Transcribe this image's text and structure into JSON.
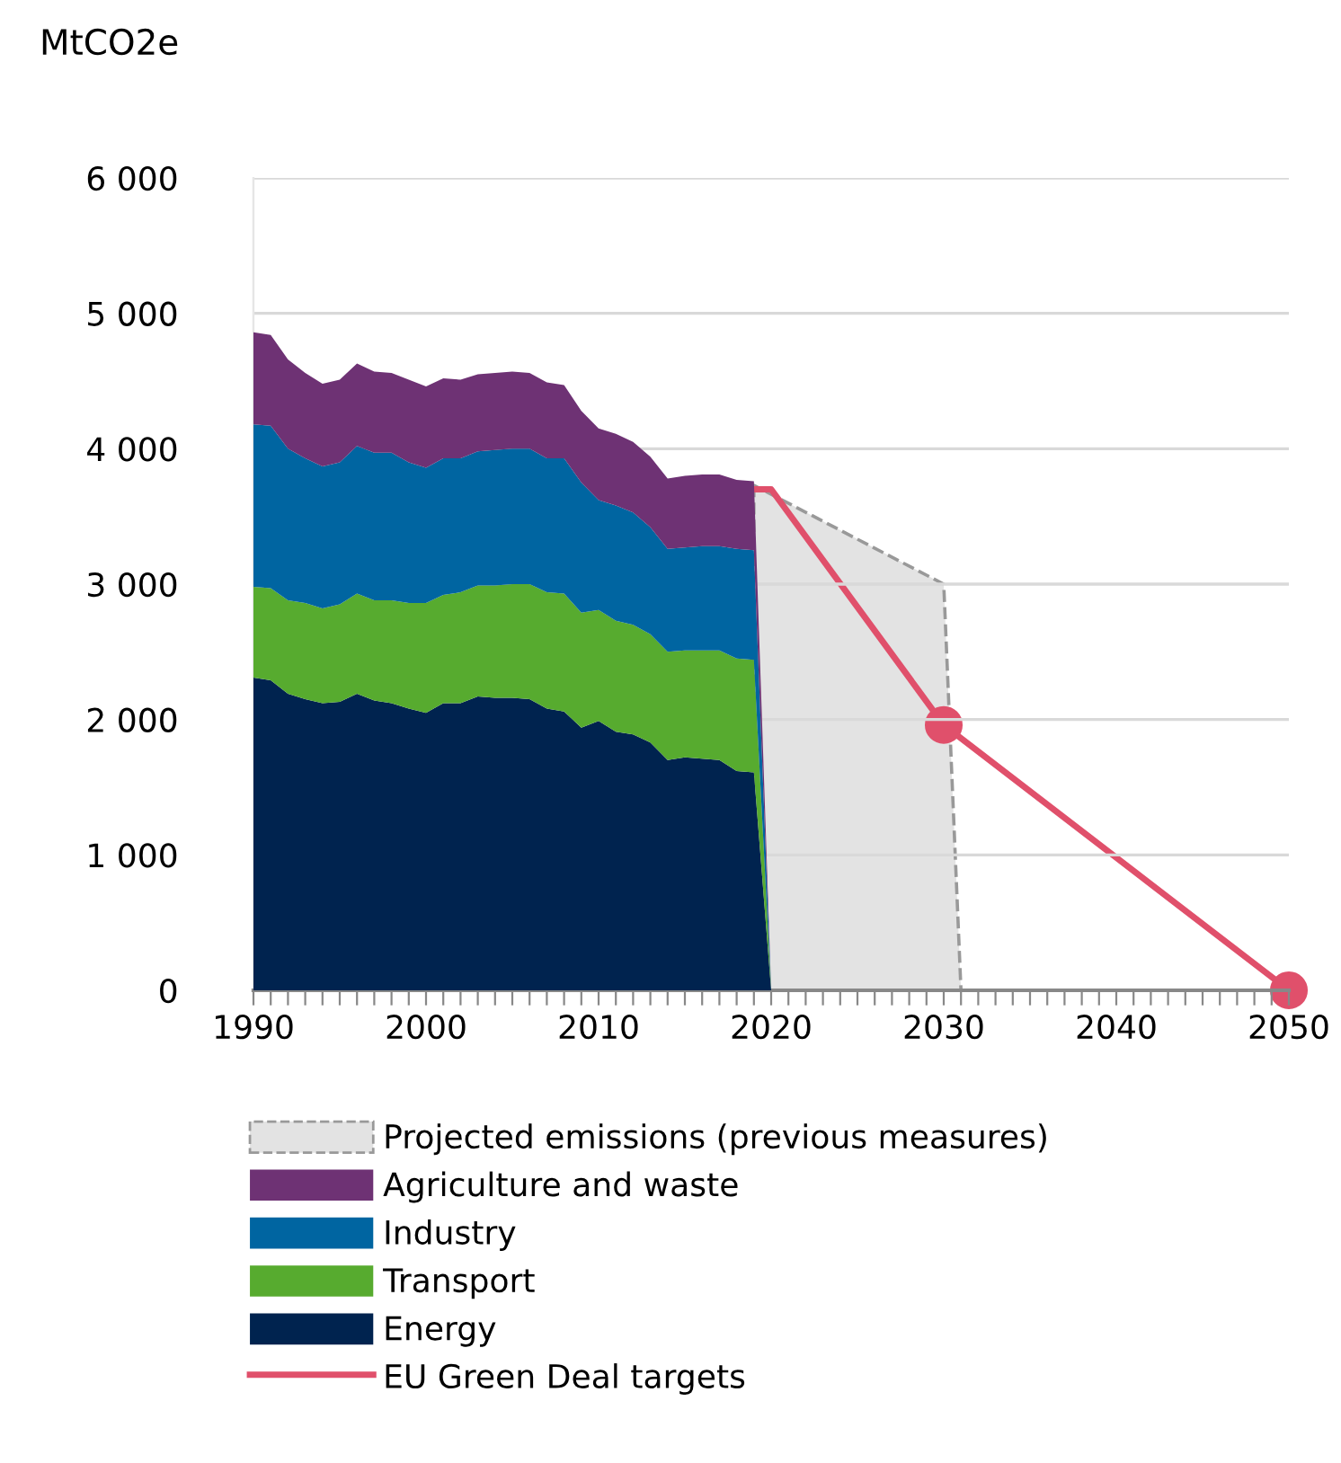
{
  "chart_data": [
    {
      "type": "area",
      "stacked": true,
      "ylabel": "MtCO2e",
      "x": [
        1990,
        1991,
        1992,
        1993,
        1994,
        1995,
        1996,
        1997,
        1998,
        1999,
        2000,
        2001,
        2002,
        2003,
        2004,
        2005,
        2006,
        2007,
        2008,
        2009,
        2010,
        2011,
        2012,
        2013,
        2014,
        2015,
        2016,
        2017,
        2018,
        2019,
        2020
      ],
      "series": [
        {
          "name": "Energy",
          "color": "#00234f",
          "values": [
            2310,
            2290,
            2190,
            2150,
            2120,
            2130,
            2190,
            2140,
            2120,
            2080,
            2050,
            2120,
            2120,
            2170,
            2160,
            2160,
            2150,
            2080,
            2060,
            1940,
            1990,
            1910,
            1890,
            1830,
            1700,
            1720,
            1710,
            1700,
            1620,
            1610,
            0
          ]
        },
        {
          "name": "Transport",
          "color": "#57ab2f",
          "values": [
            670,
            680,
            690,
            710,
            700,
            720,
            740,
            740,
            760,
            780,
            810,
            800,
            820,
            820,
            830,
            840,
            850,
            860,
            870,
            850,
            820,
            820,
            810,
            800,
            800,
            790,
            800,
            810,
            830,
            830,
            0
          ]
        },
        {
          "name": "Industry",
          "color": "#0065a1",
          "values": [
            1200,
            1200,
            1120,
            1070,
            1050,
            1050,
            1090,
            1090,
            1090,
            1040,
            1000,
            1010,
            990,
            990,
            1000,
            1000,
            1000,
            990,
            1000,
            960,
            810,
            850,
            830,
            790,
            760,
            760,
            770,
            770,
            810,
            810,
            0
          ]
        },
        {
          "name": "Agriculture and waste",
          "color": "#6e3274",
          "values": [
            680,
            670,
            660,
            630,
            610,
            610,
            610,
            600,
            590,
            610,
            600,
            590,
            580,
            570,
            570,
            570,
            560,
            560,
            540,
            530,
            530,
            530,
            520,
            520,
            520,
            530,
            530,
            530,
            510,
            510,
            0
          ]
        }
      ],
      "xlim": [
        1990,
        2050
      ],
      "xticks": [
        1990,
        {
          "value": 1991,
          "label": null
        },
        {
          "value": 1992,
          "label": null
        },
        {
          "value": 1993,
          "label": null
        },
        {
          "value": 1994,
          "label": null
        },
        {
          "value": 1995,
          "label": null
        },
        {
          "value": 1996,
          "label": null
        },
        {
          "value": 1997,
          "label": null
        },
        {
          "value": 1998,
          "label": null
        },
        {
          "value": 1999,
          "label": null
        },
        2000,
        {
          "value": 2001,
          "label": null
        },
        {
          "value": 2002,
          "label": null
        },
        {
          "value": 2003,
          "label": null
        },
        {
          "value": 2004,
          "label": null
        },
        {
          "value": 2005,
          "label": null
        },
        {
          "value": 2006,
          "label": null
        },
        {
          "value": 2007,
          "label": null
        },
        {
          "value": 2008,
          "label": null
        },
        {
          "value": 2009,
          "label": null
        },
        2010,
        {
          "value": 2011,
          "label": null
        },
        {
          "value": 2012,
          "label": null
        },
        {
          "value": 2013,
          "label": null
        },
        {
          "value": 2014,
          "label": null
        },
        {
          "value": 2015,
          "label": null
        },
        {
          "value": 2016,
          "label": null
        },
        {
          "value": 2017,
          "label": null
        },
        {
          "value": 2018,
          "label": null
        },
        {
          "value": 2019,
          "label": null
        },
        2020,
        {
          "value": 2021,
          "label": null
        },
        {
          "value": 2022,
          "label": null
        },
        {
          "value": 2023,
          "label": null
        },
        {
          "value": 2024,
          "label": null
        },
        {
          "value": 2025,
          "label": null
        },
        {
          "value": 2026,
          "label": null
        },
        {
          "value": 2027,
          "label": null
        },
        {
          "value": 2028,
          "label": null
        },
        {
          "value": 2029,
          "label": null
        },
        2030,
        {
          "value": 2031,
          "label": null
        },
        {
          "value": 2032,
          "label": null
        },
        {
          "value": 2033,
          "label": null
        },
        {
          "value": 2034,
          "label": null
        },
        {
          "value": 2035,
          "label": null
        },
        {
          "value": 2036,
          "label": null
        },
        {
          "value": 2037,
          "label": null
        },
        {
          "value": 2038,
          "label": null
        },
        {
          "value": 2039,
          "label": null
        },
        2040,
        {
          "value": 2041,
          "label": null
        },
        {
          "value": 2042,
          "label": null
        },
        {
          "value": 2043,
          "label": null
        },
        {
          "value": 2044,
          "label": null
        },
        {
          "value": 2045,
          "label": null
        },
        {
          "value": 2046,
          "label": null
        },
        {
          "value": 2047,
          "label": null
        },
        {
          "value": 2048,
          "label": null
        },
        {
          "value": 2049,
          "label": null
        },
        2050
      ],
      "ylim": [
        0,
        6000
      ],
      "yticks": [
        0,
        {
          "value": 1000,
          "label": "1 000"
        },
        {
          "value": 2000,
          "label": "2 000"
        },
        {
          "value": 3000,
          "label": "3 000"
        },
        {
          "value": 4000,
          "label": "4 000"
        },
        {
          "value": 5000,
          "label": "5 000"
        },
        {
          "value": 6000,
          "label": "6 000"
        }
      ],
      "grid": "y",
      "legend": "bottom"
    },
    {
      "type": "area",
      "xlim": [
        1990,
        2050
      ],
      "ylim": [
        0,
        6000
      ],
      "series": [
        {
          "name": "Projected emissions (previous measures)",
          "line_style": "dashed",
          "color": "#e3e3e3",
          "x": [
            2019,
            2030,
            2031
          ],
          "values": [
            3730,
            3000,
            0
          ]
        },
        {
          "name": "EU Green Deal targets",
          "type": "line",
          "marker": "none",
          "line_style": "solid",
          "color": "#e0506b",
          "x": [
            2019,
            2020,
            2030,
            2050
          ],
          "values": [
            3700,
            3700,
            1960,
            0
          ]
        },
        {
          "type": "scatter",
          "marker": "circle",
          "color": "#e0506b",
          "x": [
            2030,
            2050
          ],
          "values": [
            1960,
            0
          ]
        }
      ],
      "legend": "bottom"
    }
  ]
}
